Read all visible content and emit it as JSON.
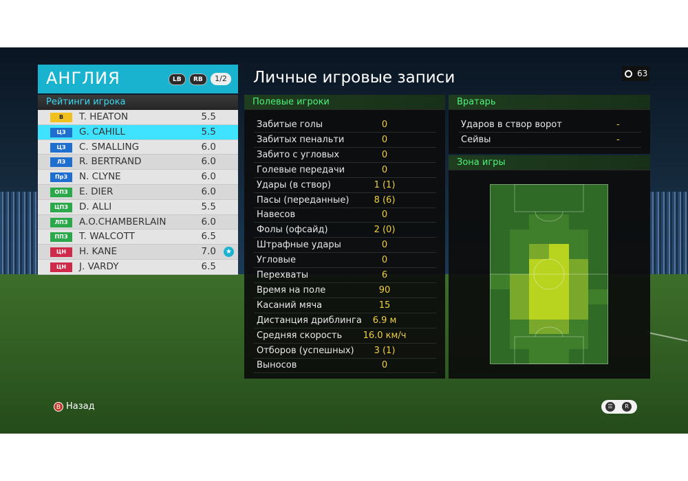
{
  "team": {
    "name": "АНГЛИЯ",
    "lb_label": "LB",
    "rb_label": "RB",
    "page": "1/2"
  },
  "ratings_header": "Рейтинги игрока",
  "players": [
    {
      "pos": "В",
      "pos_color": "#f0c020",
      "pos_text_color": "#222",
      "name": "T. HEATON",
      "rating": "5.5",
      "selected": false,
      "star": false
    },
    {
      "pos": "ЦЗ",
      "pos_color": "#1e6fd0",
      "pos_text_color": "#ffffff",
      "name": "G. CAHILL",
      "rating": "5.5",
      "selected": true,
      "star": false
    },
    {
      "pos": "ЦЗ",
      "pos_color": "#1e6fd0",
      "pos_text_color": "#ffffff",
      "name": "C. SMALLING",
      "rating": "6.0",
      "selected": false,
      "star": false
    },
    {
      "pos": "ЛЗ",
      "pos_color": "#1e6fd0",
      "pos_text_color": "#ffffff",
      "name": "R. BERTRAND",
      "rating": "6.0",
      "selected": false,
      "star": false
    },
    {
      "pos": "ПрЗ",
      "pos_color": "#1e6fd0",
      "pos_text_color": "#ffffff",
      "name": "N. CLYNE",
      "rating": "6.0",
      "selected": false,
      "star": false
    },
    {
      "pos": "ОПЗ",
      "pos_color": "#2aa84a",
      "pos_text_color": "#ffffff",
      "name": "E. DIER",
      "rating": "6.0",
      "selected": false,
      "star": false
    },
    {
      "pos": "ЦПЗ",
      "pos_color": "#2aa84a",
      "pos_text_color": "#ffffff",
      "name": "D. ALLI",
      "rating": "5.5",
      "selected": false,
      "star": false
    },
    {
      "pos": "ЛПЗ",
      "pos_color": "#2aa84a",
      "pos_text_color": "#ffffff",
      "name": "A.O.CHAMBERLAIN",
      "rating": "6.0",
      "selected": false,
      "star": false
    },
    {
      "pos": "ППЗ",
      "pos_color": "#2aa84a",
      "pos_text_color": "#ffffff",
      "name": "T. WALCOTT",
      "rating": "6.5",
      "selected": false,
      "star": false
    },
    {
      "pos": "ЦН",
      "pos_color": "#d02a4a",
      "pos_text_color": "#ffffff",
      "name": "H. KANE",
      "rating": "7.0",
      "selected": false,
      "star": true
    },
    {
      "pos": "ЦН",
      "pos_color": "#d02a4a",
      "pos_text_color": "#ffffff",
      "name": "J. VARDY",
      "rating": "6.5",
      "selected": false,
      "star": false
    }
  ],
  "title": "Личные игровые записи",
  "clock_value": "63",
  "field_players": {
    "header": "Полевые игроки",
    "stats": [
      {
        "label": "Забитые голы",
        "value": "0"
      },
      {
        "label": "Забитых пенальти",
        "value": "0"
      },
      {
        "label": "Забито с угловых",
        "value": "0"
      },
      {
        "label": "Голевые передачи",
        "value": "0"
      },
      {
        "label": "Удары (в створ)",
        "value": "1 (1)"
      },
      {
        "label": "Пасы (переданные)",
        "value": "8 (6)"
      },
      {
        "label": "Навесов",
        "value": "0"
      },
      {
        "label": "Фолы (офсайд)",
        "value": "2 (0)"
      },
      {
        "label": "Штрафные удары",
        "value": "0"
      },
      {
        "label": "Угловые",
        "value": "0"
      },
      {
        "label": "Перехваты",
        "value": "6"
      },
      {
        "label": "Время на поле",
        "value": "90"
      },
      {
        "label": "Касаний мяча",
        "value": "15"
      },
      {
        "label": "Дистанция дриблинга",
        "value": "6.9 м"
      },
      {
        "label": "Средняя скорость",
        "value": "16.0 км/ч"
      },
      {
        "label": "Отборов (успешных)",
        "value": "3 (1)"
      },
      {
        "label": "Выносов",
        "value": "0"
      }
    ]
  },
  "goalkeeper": {
    "header": "Вратарь",
    "stats": [
      {
        "label": "Ударов в створ ворот",
        "value": "-"
      },
      {
        "label": "Сейвы",
        "value": "-"
      }
    ]
  },
  "zone": {
    "header": "Зона игры",
    "heatmap_cols": 6,
    "heatmap_rows": 12,
    "heatmap": [
      [
        0,
        0,
        0,
        0,
        0,
        0
      ],
      [
        0,
        0,
        0,
        0,
        0,
        0
      ],
      [
        0,
        0,
        1,
        1,
        0,
        0
      ],
      [
        0,
        1,
        1,
        1,
        1,
        0
      ],
      [
        0,
        1,
        2,
        3,
        1,
        0
      ],
      [
        0,
        1,
        3,
        3,
        2,
        0
      ],
      [
        1,
        2,
        3,
        3,
        2,
        0
      ],
      [
        0,
        2,
        3,
        3,
        2,
        1
      ],
      [
        0,
        2,
        3,
        3,
        2,
        0
      ],
      [
        0,
        1,
        2,
        2,
        1,
        0
      ],
      [
        0,
        1,
        1,
        1,
        1,
        0
      ],
      [
        0,
        0,
        1,
        1,
        0,
        0
      ]
    ]
  },
  "back_label": "Назад",
  "b_button": "B"
}
